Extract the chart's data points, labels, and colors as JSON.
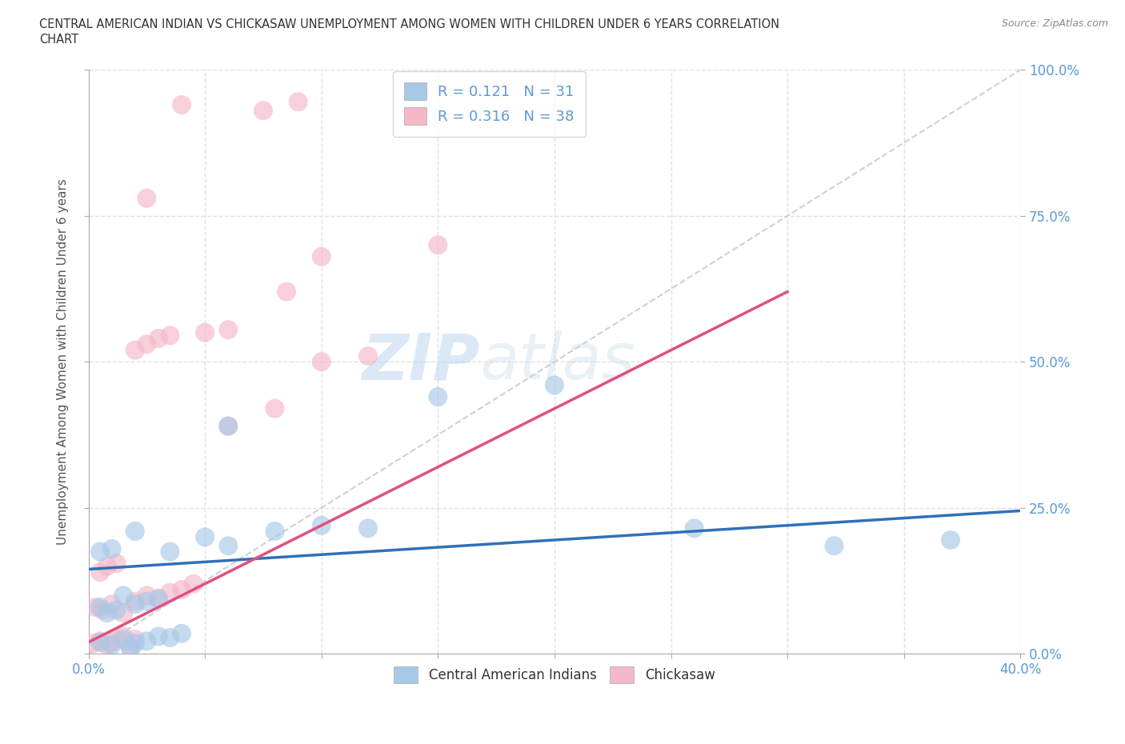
{
  "title_line1": "CENTRAL AMERICAN INDIAN VS CHICKASAW UNEMPLOYMENT AMONG WOMEN WITH CHILDREN UNDER 6 YEARS CORRELATION",
  "title_line2": "CHART",
  "source": "Source: ZipAtlas.com",
  "ylabel": "Unemployment Among Women with Children Under 6 years",
  "xlim": [
    0.0,
    0.4
  ],
  "ylim": [
    0.0,
    1.0
  ],
  "watermark_zip": "ZIP",
  "watermark_atlas": "atlas",
  "legend_r1": "R = 0.121",
  "legend_n1": "N = 31",
  "legend_r2": "R = 0.316",
  "legend_n2": "N = 38",
  "blue_color": "#a8c8e8",
  "pink_color": "#f4b8c8",
  "blue_line_color": "#3070b8",
  "pink_line_color": "#e05080",
  "blue_scatter_x": [
    0.005,
    0.01,
    0.015,
    0.018,
    0.02,
    0.025,
    0.03,
    0.035,
    0.04,
    0.005,
    0.008,
    0.012,
    0.015,
    0.02,
    0.025,
    0.03,
    0.05,
    0.06,
    0.08,
    0.1,
    0.12,
    0.15,
    0.2,
    0.26,
    0.32,
    0.37,
    0.005,
    0.01,
    0.02,
    0.035,
    0.06
  ],
  "blue_scatter_y": [
    0.02,
    0.015,
    0.025,
    0.01,
    0.018,
    0.022,
    0.03,
    0.028,
    0.035,
    0.08,
    0.07,
    0.075,
    0.1,
    0.085,
    0.09,
    0.095,
    0.2,
    0.185,
    0.21,
    0.22,
    0.215,
    0.44,
    0.46,
    0.215,
    0.185,
    0.195,
    0.175,
    0.18,
    0.21,
    0.175,
    0.39
  ],
  "pink_scatter_x": [
    0.002,
    0.005,
    0.008,
    0.01,
    0.012,
    0.015,
    0.018,
    0.02,
    0.003,
    0.006,
    0.01,
    0.015,
    0.02,
    0.025,
    0.03,
    0.035,
    0.04,
    0.045,
    0.005,
    0.008,
    0.012,
    0.06,
    0.08,
    0.1,
    0.12,
    0.02,
    0.025,
    0.03,
    0.035,
    0.05,
    0.06,
    0.1,
    0.15,
    0.025,
    0.04,
    0.075,
    0.09,
    0.085
  ],
  "pink_scatter_y": [
    0.018,
    0.022,
    0.015,
    0.02,
    0.025,
    0.03,
    0.012,
    0.025,
    0.08,
    0.075,
    0.085,
    0.07,
    0.09,
    0.1,
    0.095,
    0.105,
    0.11,
    0.12,
    0.14,
    0.15,
    0.155,
    0.39,
    0.42,
    0.5,
    0.51,
    0.52,
    0.53,
    0.54,
    0.545,
    0.55,
    0.555,
    0.68,
    0.7,
    0.78,
    0.94,
    0.93,
    0.945,
    0.62
  ],
  "blue_line_x": [
    0.0,
    0.4
  ],
  "blue_line_y": [
    0.145,
    0.245
  ],
  "pink_line_x": [
    0.0,
    0.3
  ],
  "pink_line_y": [
    0.02,
    0.62
  ],
  "diag_line_color": "#d0d0d8",
  "grid_color": "#e0e0e8",
  "label1": "Central American Indians",
  "label2": "Chickasaw"
}
